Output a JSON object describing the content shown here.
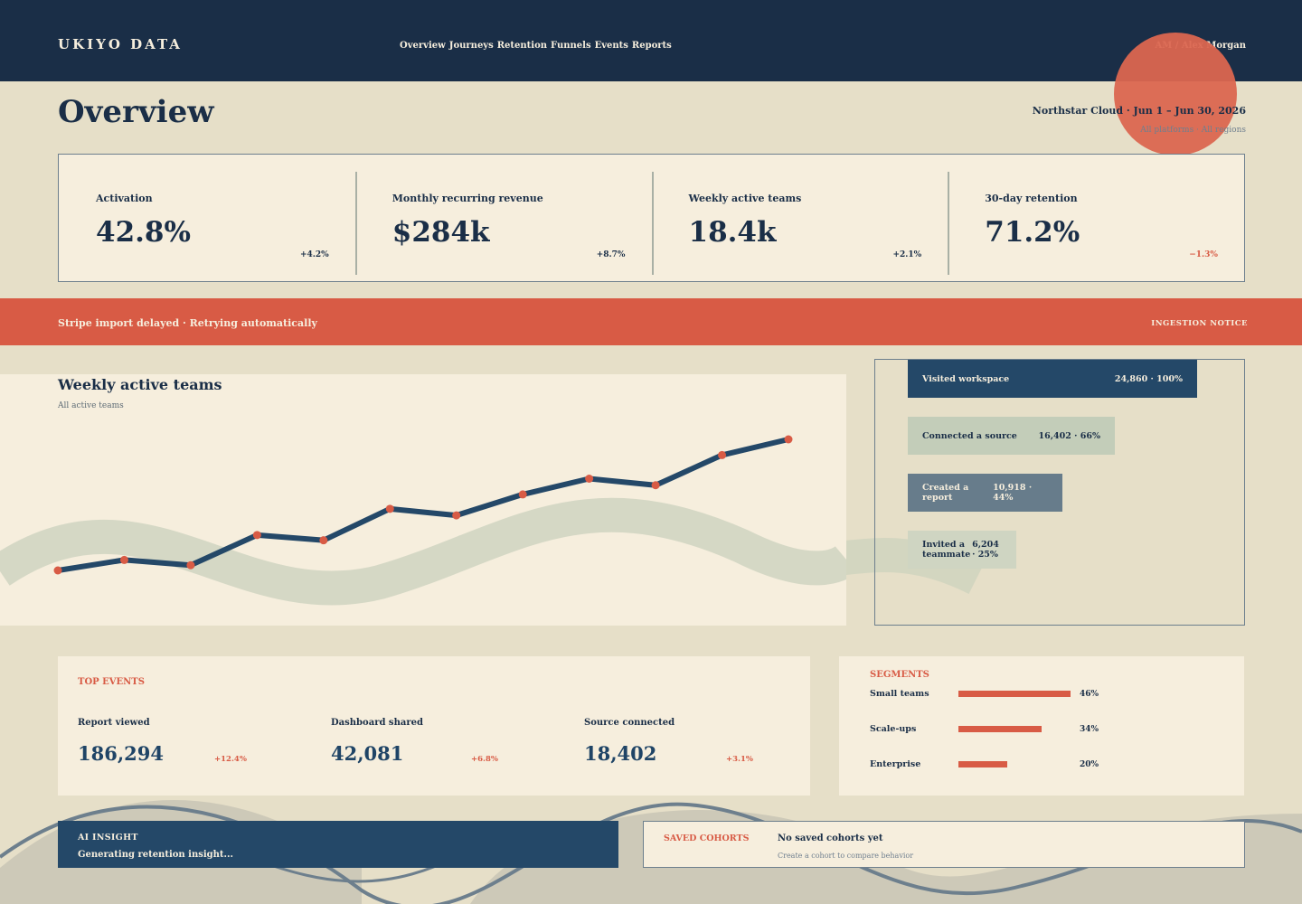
{
  "header": {
    "brand": "UKIYO DATA",
    "nav": [
      "Overview",
      "Journeys",
      "Retention",
      "Funnels",
      "Events",
      "Reports"
    ],
    "user": "AM / Alex Morgan"
  },
  "page": {
    "title": "Overview",
    "context": "Northstar Cloud · Jun 1 – Jun 30, 2026",
    "filters": "All platforms · All regions"
  },
  "kpis": [
    {
      "label": "Activation",
      "value": "42.8%",
      "delta": "+4.2%",
      "trend": "up"
    },
    {
      "label": "Monthly recurring revenue",
      "value": "$284k",
      "delta": "+8.7%",
      "trend": "up"
    },
    {
      "label": "Weekly active teams",
      "value": "18.4k",
      "delta": "+2.1%",
      "trend": "up"
    },
    {
      "label": "30-day retention",
      "value": "71.2%",
      "delta": "−1.3%",
      "trend": "down"
    }
  ],
  "banner": {
    "message": "Stripe import delayed · Retrying automatically",
    "tag": "INGESTION NOTICE"
  },
  "chart": {
    "title": "Weekly active teams",
    "subtitle": "All active teams"
  },
  "chart_data": {
    "type": "line",
    "title": "Weekly active teams",
    "subtitle": "All active teams",
    "x": [
      1,
      2,
      3,
      4,
      5,
      6,
      7,
      8,
      9,
      10,
      11,
      12
    ],
    "series": [
      {
        "values": [
          0.0,
          0.08,
          0.04,
          0.27,
          0.23,
          0.47,
          0.42,
          0.58,
          0.7,
          0.65,
          0.88,
          1.0
        ]
      }
    ],
    "grid": false,
    "legend": "none",
    "line_color": "#244868",
    "marker_color": "#d85b45"
  },
  "funnel": {
    "ghost_label": "",
    "steps": [
      {
        "label": "Visited workspace",
        "value": "24,860 · 100%",
        "share": 1.0,
        "color": "#244868",
        "text_color": "#f6eedd"
      },
      {
        "label": "Connected a source",
        "value": "16,402 · 66%",
        "share": 0.66,
        "color": "#c3cdb9",
        "text_color": "#1a2e47"
      },
      {
        "label": "Created a report",
        "value": "10,918 · 44%",
        "share": 0.44,
        "color": "#677c8b",
        "text_color": "#f6eedd"
      },
      {
        "label": "Invited a teammate",
        "value": "6,204 · 25%",
        "share": 0.25,
        "color": "#cfd5c2",
        "text_color": "#1a2e47"
      }
    ]
  },
  "top_events": {
    "kicker": "TOP EVENTS",
    "items": [
      {
        "label": "Report viewed",
        "value": "186,294",
        "delta": "+12.4%"
      },
      {
        "label": "Dashboard shared",
        "value": "42,081",
        "delta": "+6.8%"
      },
      {
        "label": "Source connected",
        "value": "18,402",
        "delta": "+3.1%"
      }
    ]
  },
  "segments": {
    "kicker": "SEGMENTS",
    "items": [
      {
        "label": "Small teams",
        "pct": "46%",
        "share": 0.46
      },
      {
        "label": "Scale-ups",
        "pct": "34%",
        "share": 0.34
      },
      {
        "label": "Enterprise",
        "pct": "20%",
        "share": 0.2
      }
    ]
  },
  "insight": {
    "kicker": "AI INSIGHT",
    "text": "Generating retention insight..."
  },
  "cohorts": {
    "kicker": "SAVED COHORTS",
    "title": "No saved cohorts yet",
    "subtitle": "Create a cohort to compare behavior"
  },
  "colors": {
    "navy": "#1a2e47",
    "coral": "#d85b45",
    "cream": "#f6eedd",
    "sand": "#e6dfc8",
    "sage": "#c3cdb9"
  }
}
